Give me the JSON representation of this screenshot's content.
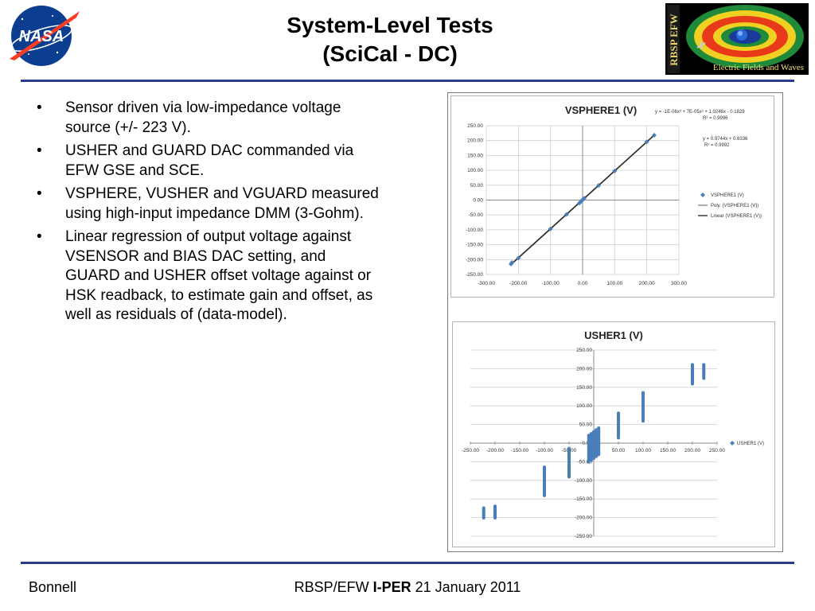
{
  "header": {
    "title_line1": "System-Level Tests",
    "title_line2": "(SciCal - DC)",
    "nasa_logo_text": "NASA",
    "rbsp_logo": {
      "side_text": "RBSP EFW",
      "subtitle": "Electric Fields and Waves"
    }
  },
  "bullets": [
    "Sensor driven via low-impedance voltage source (+/- 223 V).",
    "USHER and GUARD DAC commanded via EFW GSE and SCE.",
    "VSPHERE, VUSHER and VGUARD measured using high-input impedance DMM (3-Gohm).",
    "Linear regression of output voltage against VSENSOR and BIAS DAC setting, and GUARD and USHER offset voltage against or HSK readback, to estimate gain and offset, as well as residuals of (data-model)."
  ],
  "chart_data": [
    {
      "type": "scatter",
      "title": "VSPHERE1 (V)",
      "xlim": [
        -300,
        300
      ],
      "ylim": [
        -250,
        250
      ],
      "xticks": [
        "-300.00",
        "-200.00",
        "-100.00",
        "0.00",
        "100.00",
        "200.00",
        "300.00"
      ],
      "yticks": [
        "250.00",
        "200.00",
        "150.00",
        "100.00",
        "50.00",
        "0.00",
        "-50.00",
        "-100.00",
        "-150.00",
        "-200.00",
        "-250.00"
      ],
      "series": [
        {
          "name": "VSPHERE1 (V)",
          "kind": "points",
          "x": [
            -223,
            -220,
            -200,
            -100,
            -50,
            -10,
            -5,
            0,
            5,
            50,
            100,
            200,
            223
          ],
          "y": [
            -215,
            -210,
            -195,
            -97,
            -48,
            -10,
            -5,
            1,
            6,
            49,
            98,
            196,
            218
          ]
        },
        {
          "name": "Poly. (VSPHERE1 (V))",
          "kind": "line",
          "x": [
            -223,
            223
          ],
          "y": [
            -217,
            218
          ]
        },
        {
          "name": "Linear (VSPHERE1 (V))",
          "kind": "line",
          "x": [
            -223,
            223
          ],
          "y": [
            -216,
            218
          ]
        }
      ],
      "equations": [
        "y = -1E-06x³ + 7E-05x² + 1.0246x - 0.1829",
        "R² = 0.9996",
        "y = 0.9744x + 0.6336",
        "R² = 0.9992"
      ],
      "legend": "right",
      "grid": true,
      "colors": {
        "points": "#4a7ebb",
        "poly": "#8c8c8c",
        "linear": "#2b2b2b"
      }
    },
    {
      "type": "scatter",
      "title": "USHER1 (V)",
      "xlim": [
        -250,
        250
      ],
      "ylim": [
        -250,
        250
      ],
      "xticks": [
        "-250.00",
        "-200.00",
        "-150.00",
        "-100.00",
        "-50.00",
        "0.00",
        "50.00",
        "100.00",
        "150.00",
        "200.00",
        "250.00"
      ],
      "yticks": [
        "250.00",
        "200.00",
        "150.00",
        "100.00",
        "50.00",
        "0.00",
        "-50.00",
        "-100.00",
        "-150.00",
        "-200.00",
        "-250.00"
      ],
      "series": [
        {
          "name": "USHER1 (V)",
          "ranges": [
            {
              "x": -223,
              "ymin": -205,
              "ymax": -170
            },
            {
              "x": -200,
              "ymin": -205,
              "ymax": -165
            },
            {
              "x": -100,
              "ymin": -145,
              "ymax": -60
            },
            {
              "x": -50,
              "ymin": -95,
              "ymax": -10
            },
            {
              "x": -10,
              "ymin": -55,
              "ymax": 25
            },
            {
              "x": -5,
              "ymin": -50,
              "ymax": 30
            },
            {
              "x": 0,
              "ymin": -45,
              "ymax": 35
            },
            {
              "x": 5,
              "ymin": -40,
              "ymax": 40
            },
            {
              "x": 10,
              "ymin": -35,
              "ymax": 45
            },
            {
              "x": 50,
              "ymin": 10,
              "ymax": 85
            },
            {
              "x": 100,
              "ymin": 55,
              "ymax": 140
            },
            {
              "x": 200,
              "ymin": 155,
              "ymax": 215
            },
            {
              "x": 223,
              "ymin": 170,
              "ymax": 215
            }
          ]
        }
      ],
      "legend": "right",
      "grid": true,
      "colors": {
        "points": "#4a7ebb"
      }
    }
  ],
  "footer": {
    "author": "Bonnell",
    "program": "RBSP/EFW",
    "review": "I-PER",
    "date": "21 January 2011"
  }
}
